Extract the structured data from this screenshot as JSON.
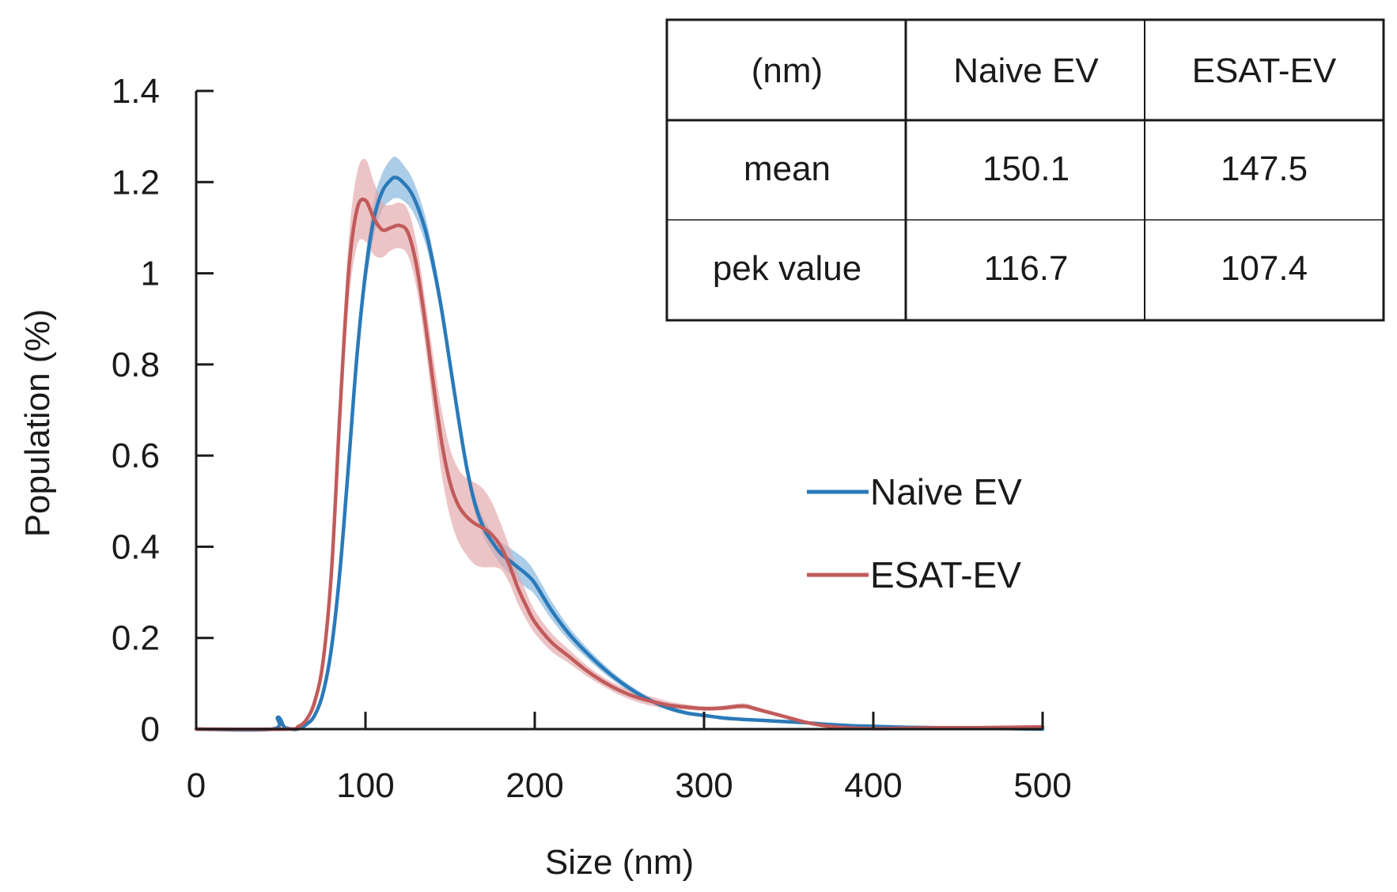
{
  "chart_data": {
    "type": "line",
    "title": "",
    "xlabel": "Size (nm)",
    "ylabel": "Population (%)",
    "xlim": [
      0,
      500
    ],
    "ylim": [
      0,
      1.4
    ],
    "x_ticks": [
      0,
      100,
      200,
      300,
      400,
      500
    ],
    "y_ticks": [
      0,
      0.2,
      0.4,
      0.6,
      0.8,
      1,
      1.2,
      1.4
    ],
    "y_tick_labels": [
      "0",
      "0.2",
      "0.4",
      "0.6",
      "0.8",
      "1",
      "1.2",
      "1.4"
    ],
    "legend_position": "right",
    "series": [
      {
        "name": "Naive EV",
        "color": "#2a7ab9",
        "band_color": "#7fb2dc",
        "x": [
          0,
          45,
          48,
          50,
          52,
          56,
          60,
          65,
          70,
          75,
          80,
          85,
          90,
          95,
          100,
          105,
          110,
          115,
          118,
          122,
          128,
          135,
          140,
          145,
          150,
          155,
          160,
          165,
          170,
          175,
          180,
          185,
          190,
          195,
          200,
          210,
          220,
          230,
          240,
          250,
          260,
          270,
          280,
          290,
          300,
          310,
          320,
          330,
          340,
          350,
          360,
          370,
          380,
          390,
          400,
          420,
          440,
          460,
          480,
          500
        ],
        "y": [
          0,
          0,
          0.025,
          0.02,
          0.005,
          0,
          0,
          0.01,
          0.03,
          0.08,
          0.18,
          0.35,
          0.58,
          0.82,
          1.0,
          1.12,
          1.18,
          1.205,
          1.21,
          1.2,
          1.17,
          1.1,
          1.02,
          0.92,
          0.8,
          0.68,
          0.57,
          0.49,
          0.44,
          0.41,
          0.385,
          0.37,
          0.355,
          0.34,
          0.32,
          0.26,
          0.21,
          0.17,
          0.135,
          0.105,
          0.08,
          0.06,
          0.045,
          0.035,
          0.03,
          0.025,
          0.022,
          0.02,
          0.018,
          0.016,
          0.014,
          0.011,
          0.009,
          0.007,
          0.006,
          0.004,
          0.003,
          0.002,
          0.001,
          0
        ],
        "spread": [
          0,
          0,
          0.004,
          0.004,
          0.002,
          0,
          0,
          0.003,
          0.006,
          0.01,
          0.015,
          0.02,
          0.025,
          0.03,
          0.035,
          0.04,
          0.04,
          0.045,
          0.045,
          0.04,
          0.035,
          0.03,
          0.025,
          0.022,
          0.02,
          0.02,
          0.02,
          0.02,
          0.02,
          0.022,
          0.025,
          0.028,
          0.03,
          0.03,
          0.025,
          0.02,
          0.015,
          0.012,
          0.01,
          0.008,
          0.007,
          0.006,
          0.005,
          0.004,
          0.004,
          0.003,
          0.003,
          0.003,
          0.003,
          0.002,
          0.002,
          0.002,
          0.002,
          0.002,
          0.002,
          0.001,
          0.001,
          0.001,
          0.001,
          0
        ]
      },
      {
        "name": "ESAT-EV",
        "color": "#c15b5b",
        "band_color": "#e3a4a8",
        "x": [
          0,
          55,
          60,
          65,
          70,
          75,
          80,
          85,
          90,
          95,
          100,
          105,
          110,
          115,
          120,
          125,
          130,
          135,
          140,
          145,
          150,
          155,
          160,
          165,
          170,
          175,
          180,
          185,
          190,
          195,
          200,
          210,
          220,
          230,
          240,
          250,
          260,
          270,
          280,
          290,
          300,
          310,
          320,
          325,
          330,
          340,
          350,
          360,
          370,
          380,
          390,
          400,
          420,
          440,
          460,
          480,
          500
        ],
        "y": [
          0,
          0,
          0.005,
          0.02,
          0.06,
          0.15,
          0.35,
          0.7,
          1.0,
          1.14,
          1.16,
          1.12,
          1.095,
          1.1,
          1.105,
          1.09,
          1.02,
          0.9,
          0.76,
          0.63,
          0.54,
          0.49,
          0.465,
          0.45,
          0.44,
          0.425,
          0.4,
          0.36,
          0.31,
          0.27,
          0.235,
          0.19,
          0.16,
          0.13,
          0.105,
          0.085,
          0.07,
          0.06,
          0.052,
          0.048,
          0.045,
          0.046,
          0.05,
          0.05,
          0.045,
          0.035,
          0.025,
          0.015,
          0.008,
          0.004,
          0.002,
          0.001,
          0.002,
          0.003,
          0.003,
          0.004,
          0.005
        ],
        "spread": [
          0,
          0,
          0.003,
          0.005,
          0.01,
          0.02,
          0.03,
          0.05,
          0.07,
          0.08,
          0.09,
          0.08,
          0.06,
          0.05,
          0.05,
          0.05,
          0.05,
          0.05,
          0.06,
          0.07,
          0.075,
          0.08,
          0.085,
          0.09,
          0.085,
          0.07,
          0.05,
          0.04,
          0.035,
          0.03,
          0.025,
          0.02,
          0.015,
          0.012,
          0.01,
          0.01,
          0.01,
          0.01,
          0.008,
          0.006,
          0.005,
          0.005,
          0.006,
          0.006,
          0.005,
          0.004,
          0.003,
          0.002,
          0.002,
          0.002,
          0.002,
          0.002,
          0.002,
          0.002,
          0.002,
          0.002,
          0.002
        ]
      }
    ],
    "table": {
      "header": [
        "(nm)",
        "Naive EV",
        "ESAT-EV"
      ],
      "rows": [
        [
          "mean",
          "150.1",
          "147.5"
        ],
        [
          "pek value",
          "116.7",
          "107.4"
        ]
      ]
    }
  }
}
